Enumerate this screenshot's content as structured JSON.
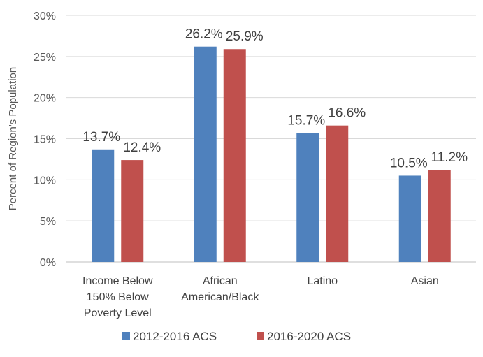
{
  "chart_data": {
    "type": "bar",
    "title": "",
    "xlabel": "",
    "ylabel": "Percent of Region's Population",
    "ylim": [
      0,
      30
    ],
    "yticks": [
      "0%",
      "5%",
      "10%",
      "15%",
      "20%",
      "25%",
      "30%"
    ],
    "categories": [
      [
        "Income Below",
        "150% Below",
        "Poverty Level"
      ],
      [
        "African",
        "American/Black"
      ],
      [
        "Latino"
      ],
      [
        "Asian"
      ]
    ],
    "series": [
      {
        "name": "2012-2016 ACS",
        "color": "#4f81bd",
        "values": [
          13.7,
          26.2,
          15.7,
          10.5
        ],
        "labels": [
          "13.7%",
          "26.2%",
          "15.7%",
          "10.5%"
        ]
      },
      {
        "name": "2016-2020 ACS",
        "color": "#c0504d",
        "values": [
          12.4,
          25.9,
          16.6,
          11.2
        ],
        "labels": [
          "12.4%",
          "25.9%",
          "16.6%",
          "11.2%"
        ]
      }
    ],
    "grid": true,
    "legend_position": "bottom"
  }
}
